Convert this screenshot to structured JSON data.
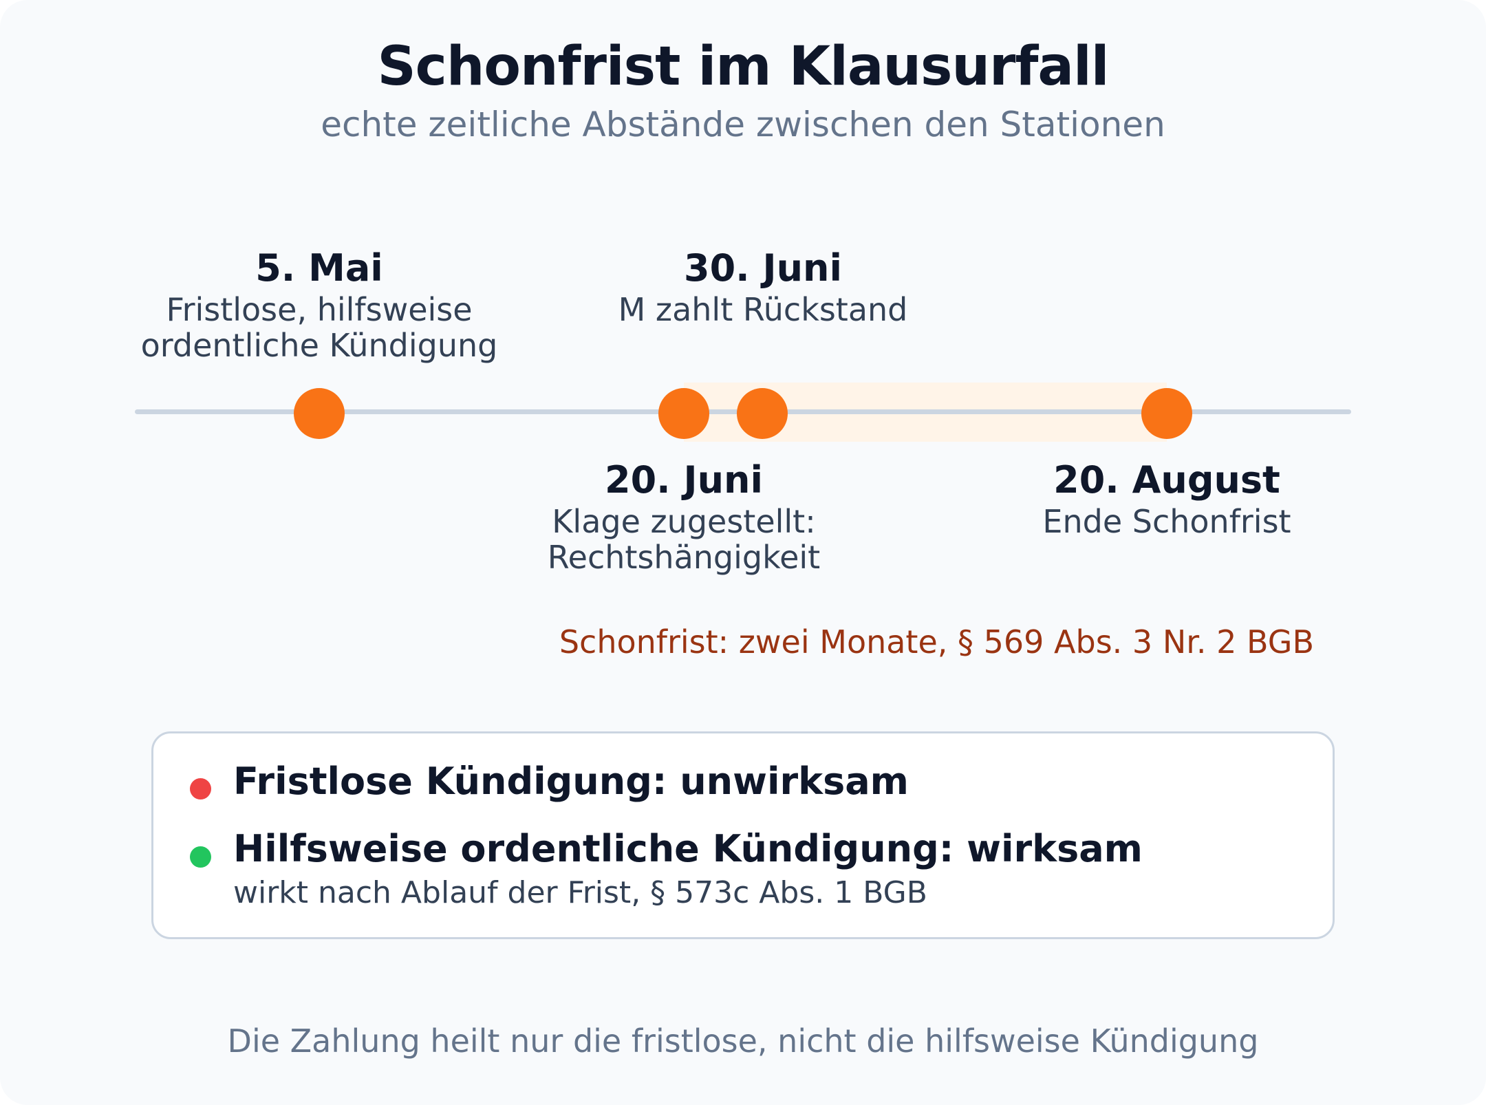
{
  "header": {
    "title": "Schonfrist im Klausurfall",
    "subtitle": "echte zeitliche Abstände zwischen den Stationen"
  },
  "timeline": {
    "events": [
      {
        "date": "5. Mai",
        "description_lines": [
          "Fristlose, hilfsweise",
          "ordentliche Kündigung"
        ],
        "label_position": "above"
      },
      {
        "date": "20. Juni",
        "description_lines": [
          "Klage zugestellt:",
          "Rechtshängigkeit"
        ],
        "label_position": "below"
      },
      {
        "date": "30. Juni",
        "description_lines": [
          "M zahlt Rückstand"
        ],
        "label_position": "above"
      },
      {
        "date": "20. August",
        "description_lines": [
          "Ende Schonfrist"
        ],
        "label_position": "below"
      }
    ],
    "highlighted_period": {
      "from": "20. Juni",
      "to": "20. August",
      "note": "Schonfrist: zwei Monate, § 569 Abs. 3 Nr. 2 BGB"
    },
    "colors": {
      "marker": "#f97316",
      "axis": "#cbd5e1",
      "period_band": "#fff4e8",
      "period_note": "#9a3412"
    }
  },
  "results": {
    "items": [
      {
        "title": "Fristlose Kündigung: unwirksam",
        "status_color": "#ef4444",
        "detail": ""
      },
      {
        "title": "Hilfsweise ordentliche Kündigung: wirksam",
        "status_color": "#22c55e",
        "detail": "wirkt nach Ablauf der Frist, § 573c Abs. 1 BGB"
      }
    ]
  },
  "footer": {
    "note": "Die Zahlung heilt nur die fristlose, nicht die hilfsweise Kündigung"
  }
}
